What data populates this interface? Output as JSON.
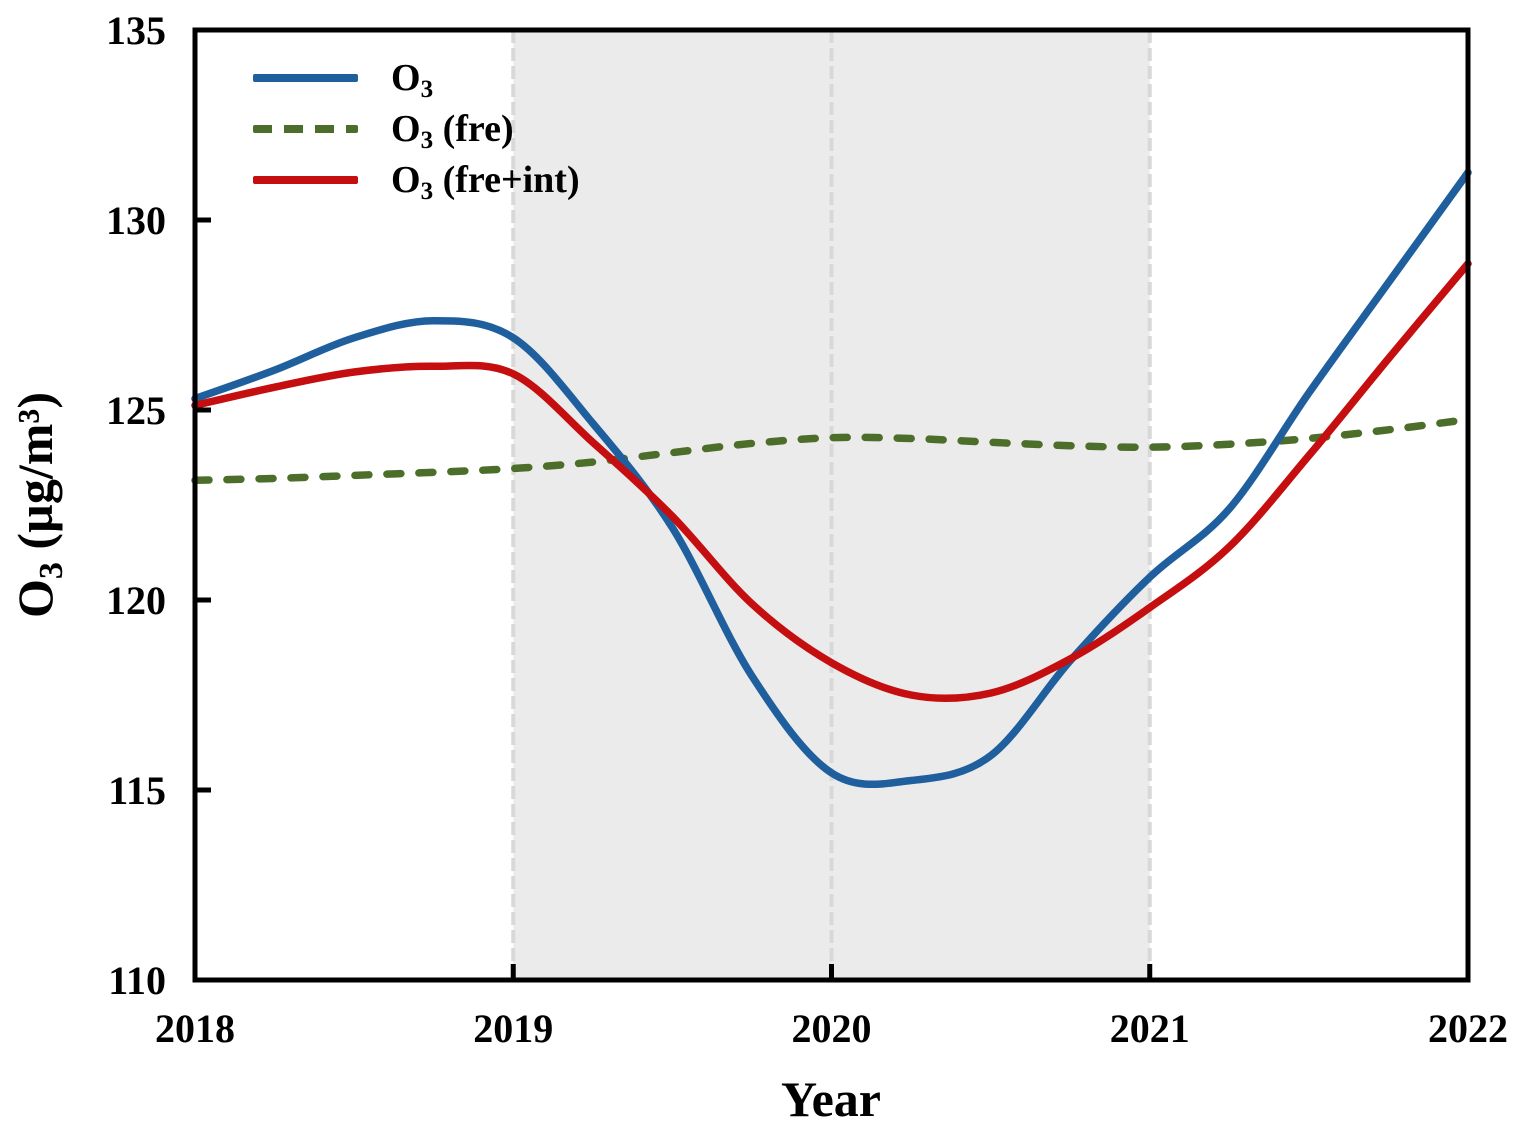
{
  "chart_data": {
    "type": "line",
    "title": "",
    "xlabel": "Year",
    "ylabel_plain": "O3 (µg/m³)",
    "ylabel_parts": [
      {
        "text": "O",
        "script": "normal"
      },
      {
        "text": "3",
        "script": "sub"
      },
      {
        "text": " (µg/m³)",
        "script": "normal"
      }
    ],
    "xlim": [
      2018,
      2022
    ],
    "ylim": [
      110,
      135
    ],
    "x_ticks": [
      "2018",
      "2019",
      "2020",
      "2021",
      "2022"
    ],
    "y_ticks": [
      "110",
      "115",
      "120",
      "125",
      "130",
      "135"
    ],
    "grid": "vertical-dashed-only",
    "legend_position": "top-left-inside",
    "axis_color": "#000000",
    "x": [
      2018,
      2018.25,
      2018.5,
      2018.75,
      2019,
      2019.25,
      2019.5,
      2019.75,
      2020,
      2020.25,
      2020.5,
      2020.75,
      2021,
      2021.25,
      2021.5,
      2021.75,
      2022
    ],
    "series": [
      {
        "name": "O3",
        "legend": {
          "base": "O",
          "sub": "3",
          "suffix": ""
        },
        "color": "#1F5F9E",
        "line_style": "solid",
        "values": [
          125.3,
          126.05,
          126.9,
          127.35,
          126.9,
          124.65,
          121.9,
          118.0,
          115.45,
          115.25,
          115.9,
          118.4,
          120.6,
          122.4,
          125.45,
          128.35,
          131.25
        ]
      },
      {
        "name": "O3 (fre)",
        "legend": {
          "base": "O",
          "sub": "3",
          "suffix": " (fre)"
        },
        "color": "#4C6E2A",
        "line_style": "dashed",
        "values": [
          123.15,
          123.2,
          123.28,
          123.36,
          123.46,
          123.63,
          123.88,
          124.12,
          124.27,
          124.25,
          124.15,
          124.06,
          124.02,
          124.1,
          124.25,
          124.48,
          124.75
        ]
      },
      {
        "name": "O3 (fre+int)",
        "legend": {
          "base": "O",
          "sub": "3",
          "suffix": " (fre+int)"
        },
        "color": "#C50E0F",
        "line_style": "solid",
        "values": [
          125.12,
          125.6,
          126.0,
          126.15,
          125.95,
          124.15,
          122.2,
          119.9,
          118.35,
          117.5,
          117.55,
          118.45,
          119.8,
          121.4,
          123.8,
          126.35,
          128.85
        ]
      }
    ],
    "shaded_band": {
      "x_start": 2019,
      "x_end": 2021,
      "color": "#EBEBEB"
    },
    "gridlines": {
      "x_positions": [
        2019,
        2020,
        2021
      ],
      "style": "dashed",
      "color": "#D8D8D8"
    }
  }
}
